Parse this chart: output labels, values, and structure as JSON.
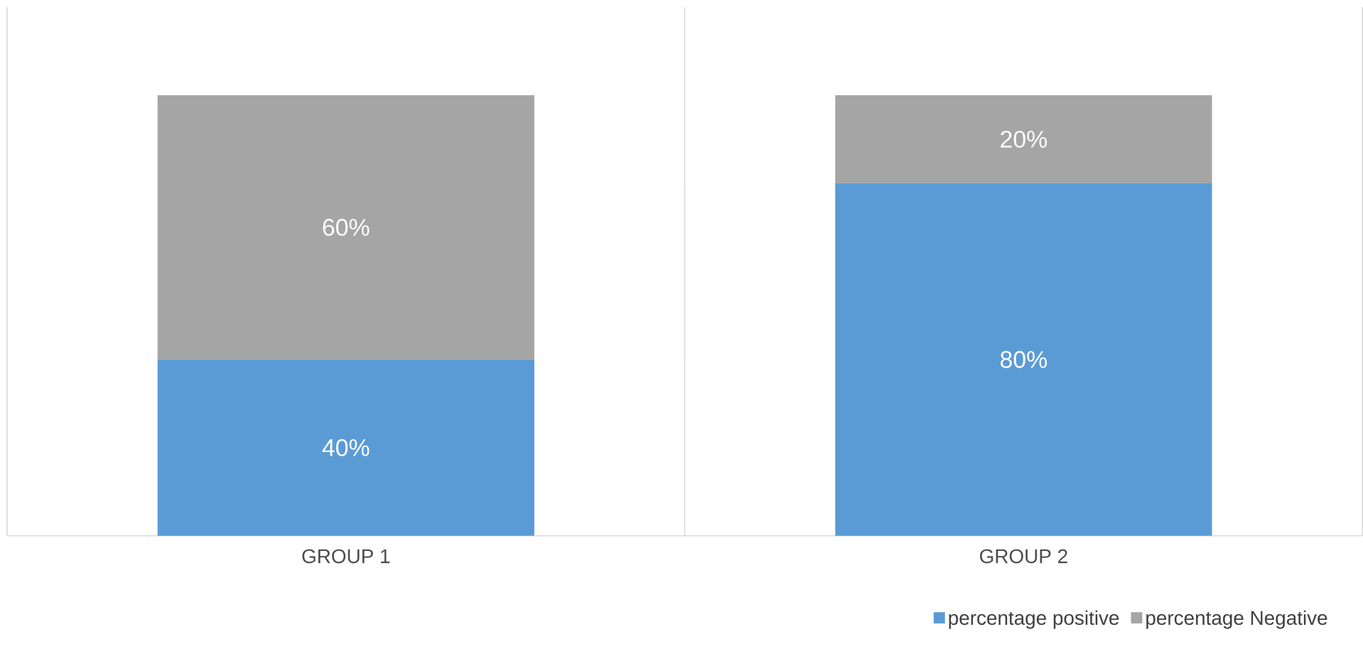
{
  "chart_data": {
    "type": "bar",
    "stacked": true,
    "categories": [
      "GROUP 1",
      "GROUP 2"
    ],
    "series": [
      {
        "name": "percentage positive",
        "color": "#5b9bd5",
        "values": [
          40,
          80
        ],
        "value_labels": [
          "40%",
          "80%"
        ]
      },
      {
        "name": "percentage Negative",
        "color": "#a5a5a5",
        "values": [
          60,
          20
        ],
        "value_labels": [
          "60%",
          "20%"
        ]
      }
    ],
    "tick_labels": "x",
    "grid": "x",
    "legend": "bottom"
  }
}
